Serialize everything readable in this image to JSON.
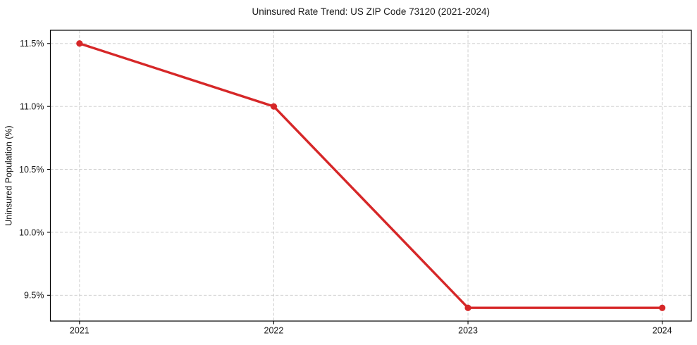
{
  "chart_data": {
    "type": "line",
    "title": "Uninsured Rate Trend: US ZIP Code 73120 (2021-2024)",
    "xlabel": "",
    "ylabel": "Uninsured Population (%)",
    "x": [
      2021,
      2022,
      2023,
      2024
    ],
    "x_tick_labels": [
      "2021",
      "2022",
      "2023",
      "2024"
    ],
    "y_ticks": [
      9.5,
      10.0,
      10.5,
      11.0,
      11.5
    ],
    "y_tick_labels": [
      "9.5%",
      "10.0%",
      "10.5%",
      "11.0%",
      "11.5%"
    ],
    "series": [
      {
        "name": "uninsured-rate",
        "values": [
          11.5,
          11.0,
          9.4,
          9.4
        ]
      }
    ],
    "xlim": [
      2020.85,
      2024.15
    ],
    "ylim": [
      9.295,
      11.605
    ],
    "grid": true,
    "grid_style": "dashed",
    "legend": "none",
    "colors": {
      "line": "#d62728",
      "marker": "#d62728",
      "grid": "#c9c9c9",
      "spine": "#000000",
      "text": "#1a1a1a",
      "background": "#ffffff"
    }
  }
}
